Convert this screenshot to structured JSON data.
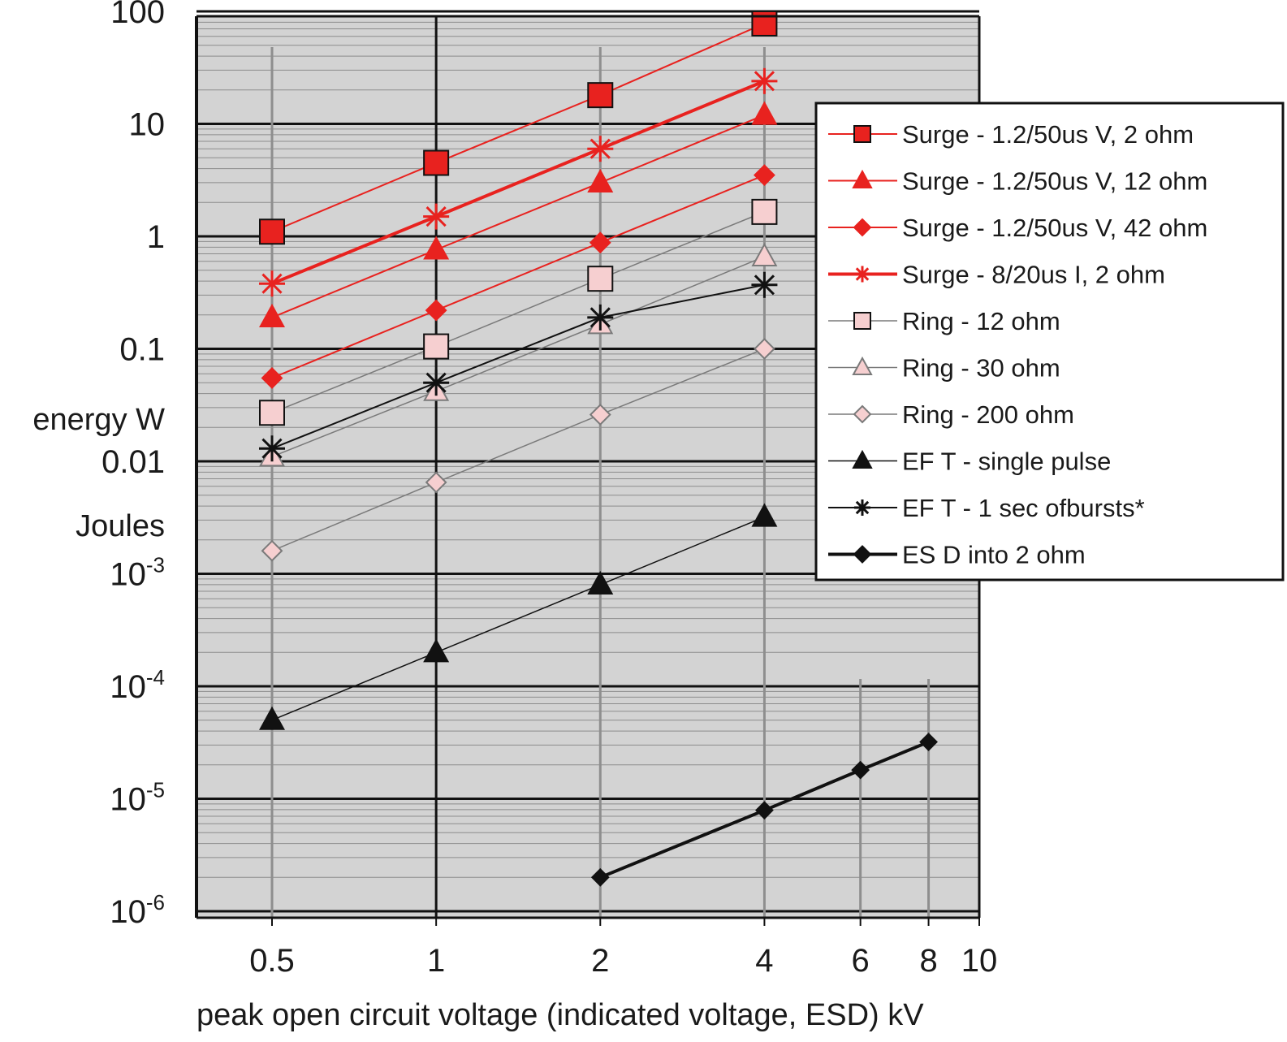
{
  "chart_data": {
    "type": "line",
    "x_scale": "log",
    "y_scale": "log",
    "xlim": [
      0.3,
      10
    ],
    "ylim": [
      1e-06,
      100
    ],
    "xlabel": "peak open circuit voltage (indicated voltage, ESD) kV",
    "ylabel_lines": [
      "energy W",
      "Joules"
    ],
    "x_ticks": [
      {
        "value": 0.5,
        "label": "0.5"
      },
      {
        "value": 1,
        "label": "1"
      },
      {
        "value": 2,
        "label": "2"
      },
      {
        "value": 4,
        "label": "4"
      },
      {
        "value": 6,
        "label": "6"
      },
      {
        "value": 8,
        "label": "8"
      },
      {
        "value": 10,
        "label": "10"
      }
    ],
    "y_ticks": [
      {
        "value": 100,
        "base": "100",
        "exp": ""
      },
      {
        "value": 10,
        "base": "10",
        "exp": ""
      },
      {
        "value": 1,
        "base": "1",
        "exp": ""
      },
      {
        "value": 0.1,
        "base": "0.1",
        "exp": ""
      },
      {
        "value": 0.01,
        "base": "0.01",
        "exp": ""
      },
      {
        "value": 0.001,
        "base": "10",
        "exp": "-3"
      },
      {
        "value": 0.0001,
        "base": "10",
        "exp": "-4"
      },
      {
        "value": 1e-05,
        "base": "10",
        "exp": "-5"
      },
      {
        "value": 1e-06,
        "base": "10",
        "exp": "-6"
      }
    ],
    "grid": true,
    "legend_position": "right, overlapping plot",
    "series": [
      {
        "name": "Surge  - 1.2/50us V,  2 ohm",
        "marker": "square",
        "color": "#e8221f",
        "fill": "#e8221f",
        "line_width": 2,
        "x": [
          0.5,
          1,
          2,
          4
        ],
        "y": [
          1.1,
          4.5,
          18,
          78
        ]
      },
      {
        "name": "Surge  - 1.2/50us V,  12 ohm",
        "marker": "triangle",
        "color": "#e8221f",
        "fill": "#e8221f",
        "line_width": 2,
        "x": [
          0.5,
          1,
          2,
          4
        ],
        "y": [
          0.19,
          0.76,
          3,
          12
        ]
      },
      {
        "name": "Surge  - 1.2/50us V,  42 ohm",
        "marker": "diamond",
        "color": "#e8221f",
        "fill": "#e8221f",
        "line_width": 2,
        "x": [
          0.5,
          1,
          2,
          4
        ],
        "y": [
          0.055,
          0.22,
          0.88,
          3.5
        ]
      },
      {
        "name": "Surge  - 8/20us  I, 2 ohm",
        "marker": "asterisk",
        "color": "#e8221f",
        "fill": "#e8221f",
        "line_width": 4,
        "x": [
          0.5,
          1,
          2,
          4
        ],
        "y": [
          0.38,
          1.5,
          6,
          24
        ]
      },
      {
        "name": "Ring  - 12 ohm",
        "marker": "square",
        "color": "#7a7a7a",
        "fill": "#f6cfd0",
        "line_width": 1.5,
        "x": [
          0.5,
          1,
          2,
          4
        ],
        "y": [
          0.027,
          0.105,
          0.42,
          1.65
        ]
      },
      {
        "name": "Ring  - 30 ohm",
        "marker": "triangle",
        "color": "#7a7a7a",
        "fill": "#f6cfd0",
        "line_width": 1.5,
        "x": [
          0.5,
          1,
          2,
          4
        ],
        "y": [
          0.011,
          0.042,
          0.165,
          0.66
        ]
      },
      {
        "name": "Ring  - 200 ohm",
        "marker": "diamond",
        "color": "#7a7a7a",
        "fill": "#f6cfd0",
        "line_width": 1.5,
        "x": [
          0.5,
          1,
          2,
          4
        ],
        "y": [
          0.0016,
          0.0065,
          0.026,
          0.1
        ]
      },
      {
        "name": "EF T -  single pulse",
        "marker": "triangle",
        "color": "#111111",
        "fill": "#111111",
        "line_width": 1.5,
        "x": [
          0.5,
          1,
          2,
          4
        ],
        "y": [
          5e-05,
          0.0002,
          0.0008,
          0.0032
        ]
      },
      {
        "name": "EF T -  1 sec  ofbursts*",
        "marker": "asterisk",
        "color": "#111111",
        "fill": "#111111",
        "line_width": 2,
        "x": [
          0.5,
          1,
          2,
          4
        ],
        "y": [
          0.013,
          0.05,
          0.19,
          0.37
        ]
      },
      {
        "name": "ES D  into 2 ohm",
        "marker": "diamond",
        "color": "#111111",
        "fill": "#111111",
        "line_width": 4,
        "x": [
          2,
          4,
          6,
          8
        ],
        "y": [
          2e-06,
          7.9e-06,
          1.8e-05,
          3.2e-05
        ]
      }
    ]
  }
}
